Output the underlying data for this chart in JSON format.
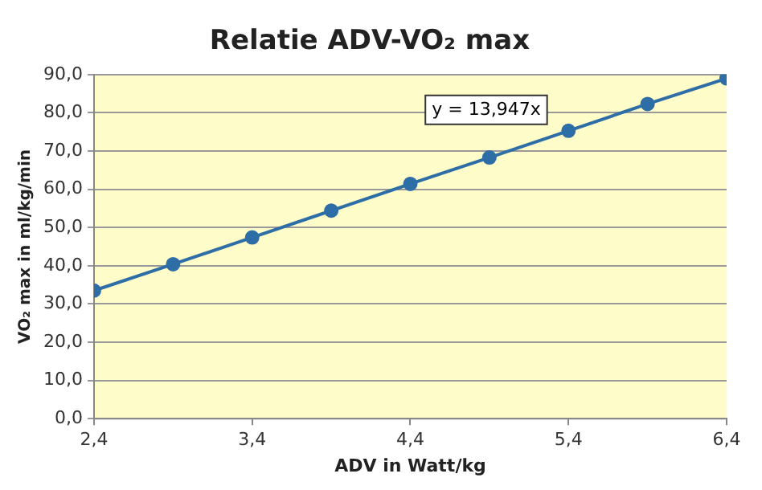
{
  "chart_data": {
    "type": "line",
    "title": "Relatie ADV-VO₂ max",
    "xlabel": "ADV in Watt/kg",
    "ylabel": "VO₂ max in ml/kg/min",
    "x": [
      2.4,
      2.9,
      3.4,
      3.9,
      4.4,
      4.9,
      5.4,
      5.9,
      6.4
    ],
    "series": [
      {
        "color": "#2e6ea6",
        "values": [
          33.5,
          40.4,
          47.4,
          54.4,
          61.4,
          68.3,
          75.3,
          82.3,
          89.0
        ]
      }
    ],
    "xlim": [
      2.4,
      6.4
    ],
    "xticks": [
      {
        "value": 2.4,
        "label": "2,4"
      },
      {
        "value": 3.4,
        "label": "3,4"
      },
      {
        "value": 4.4,
        "label": "4,4"
      },
      {
        "value": 5.4,
        "label": "5,4"
      },
      {
        "value": 6.4,
        "label": "6,4"
      }
    ],
    "ylim": [
      0,
      90
    ],
    "yticks": [
      {
        "value": 0,
        "label": "0,0"
      },
      {
        "value": 10,
        "label": "10,0"
      },
      {
        "value": 20,
        "label": "20,0"
      },
      {
        "value": 30,
        "label": "30,0"
      },
      {
        "value": 40,
        "label": "40,0"
      },
      {
        "value": 50,
        "label": "50,0"
      },
      {
        "value": 60,
        "label": "60,0"
      },
      {
        "value": 70,
        "label": "70,0"
      },
      {
        "value": 80,
        "label": "80,0"
      },
      {
        "value": 90,
        "label": "90,0"
      }
    ],
    "grid": "y",
    "legend": false,
    "marker": "circle",
    "line_style": "solid",
    "annotations": [
      "y = 13,947x"
    ]
  }
}
